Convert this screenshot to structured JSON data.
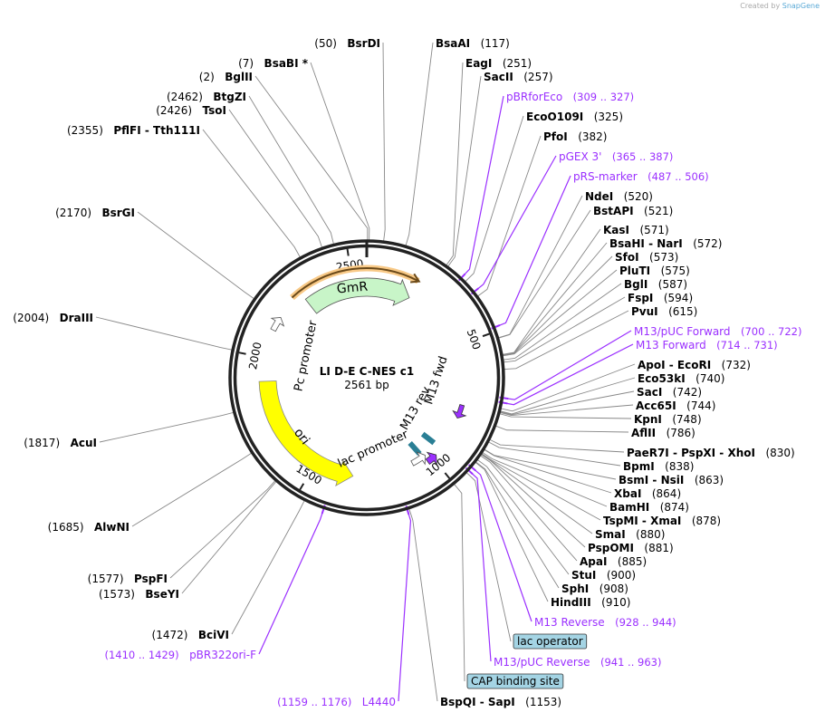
{
  "credit": {
    "prefix": "Created by",
    "brand": "SnapGene"
  },
  "plasmid": {
    "name": "LI D-E C-NES c1",
    "length": "2561 bp",
    "total_bp": 2561
  },
  "ticks": [
    "500",
    "1000",
    "1500",
    "2000",
    "2500"
  ],
  "features": {
    "gmr": "GmR",
    "pc_promoter": "Pc promoter",
    "ori": "ori",
    "m13_fwd": "M13 fwd",
    "m13_rev": "M13 rev",
    "lac_promoter": "lac promoter"
  },
  "colors": {
    "purple": "#9b30ff",
    "gmr": "#c8f5c8",
    "ori": "#ffff00",
    "orange": "#f5a623",
    "teal": "#2a7f95",
    "box": "#a4d4e4"
  },
  "labels": [
    {
      "name": "BsrDI",
      "loc": "(50)",
      "kind": "site"
    },
    {
      "name": "BsaAI",
      "loc": "(117)",
      "kind": "site"
    },
    {
      "name": "EagI",
      "loc": "(251)",
      "kind": "site"
    },
    {
      "name": "SacII",
      "loc": "(257)",
      "kind": "site"
    },
    {
      "name": "pBRforEco",
      "loc": "(309 .. 327)",
      "kind": "primer"
    },
    {
      "name": "EcoO109I",
      "loc": "(325)",
      "kind": "site"
    },
    {
      "name": "PfoI",
      "loc": "(382)",
      "kind": "site"
    },
    {
      "name": "pGEX 3'",
      "loc": "(365 .. 387)",
      "kind": "primer"
    },
    {
      "name": "pRS-marker",
      "loc": "(487 .. 506)",
      "kind": "primer"
    },
    {
      "name": "NdeI",
      "loc": "(520)",
      "kind": "site"
    },
    {
      "name": "BstAPI",
      "loc": "(521)",
      "kind": "site"
    },
    {
      "name": "KasI",
      "loc": "(571)",
      "kind": "site"
    },
    {
      "name": "BsaHI - NarI",
      "loc": "(572)",
      "kind": "site"
    },
    {
      "name": "SfoI",
      "loc": "(573)",
      "kind": "site"
    },
    {
      "name": "PluTI",
      "loc": "(575)",
      "kind": "site"
    },
    {
      "name": "BglI",
      "loc": "(587)",
      "kind": "site"
    },
    {
      "name": "FspI",
      "loc": "(594)",
      "kind": "site"
    },
    {
      "name": "PvuI",
      "loc": "(615)",
      "kind": "site"
    },
    {
      "name": "M13/pUC Forward",
      "loc": "(700 .. 722)",
      "kind": "primer"
    },
    {
      "name": "M13 Forward",
      "loc": "(714 .. 731)",
      "kind": "primer"
    },
    {
      "name": "ApoI - EcoRI",
      "loc": "(732)",
      "kind": "site"
    },
    {
      "name": "Eco53kI",
      "loc": "(740)",
      "kind": "site"
    },
    {
      "name": "SacI",
      "loc": "(742)",
      "kind": "site"
    },
    {
      "name": "Acc65I",
      "loc": "(744)",
      "kind": "site"
    },
    {
      "name": "KpnI",
      "loc": "(748)",
      "kind": "site"
    },
    {
      "name": "AflII",
      "loc": "(786)",
      "kind": "site"
    },
    {
      "name": "PaeR7I - PspXI - XhoI",
      "loc": "(830)",
      "kind": "site"
    },
    {
      "name": "BpmI",
      "loc": "(838)",
      "kind": "site"
    },
    {
      "name": "BsmI - NsiI",
      "loc": "(863)",
      "kind": "site"
    },
    {
      "name": "XbaI",
      "loc": "(864)",
      "kind": "site"
    },
    {
      "name": "BamHI",
      "loc": "(874)",
      "kind": "site"
    },
    {
      "name": "TspMI - XmaI",
      "loc": "(878)",
      "kind": "site"
    },
    {
      "name": "SmaI",
      "loc": "(880)",
      "kind": "site"
    },
    {
      "name": "PspOMI",
      "loc": "(881)",
      "kind": "site"
    },
    {
      "name": "ApaI",
      "loc": "(885)",
      "kind": "site"
    },
    {
      "name": "StuI",
      "loc": "(900)",
      "kind": "site"
    },
    {
      "name": "SphI",
      "loc": "(908)",
      "kind": "site"
    },
    {
      "name": "HindIII",
      "loc": "(910)",
      "kind": "site"
    },
    {
      "name": "M13 Reverse",
      "loc": "(928 .. 944)",
      "kind": "primer"
    },
    {
      "name": "lac operator",
      "loc": "",
      "kind": "box",
      "bp": 950
    },
    {
      "name": "M13/pUC Reverse",
      "loc": "(941 .. 963)",
      "kind": "primer"
    },
    {
      "name": "CAP binding site",
      "loc": "",
      "kind": "box",
      "bp": 1000
    },
    {
      "name": "BspQI - SapI",
      "loc": "(1153)",
      "kind": "site"
    },
    {
      "name": "L4440",
      "loc": "(1159 .. 1176)",
      "kind": "primer"
    },
    {
      "name": "pBR322ori-F",
      "loc": "(1410 .. 1429)",
      "kind": "primer"
    },
    {
      "name": "BciVI",
      "loc": "(1472)",
      "kind": "site"
    },
    {
      "name": "BseYI",
      "loc": "(1573)",
      "kind": "site"
    },
    {
      "name": "PspFI",
      "loc": "(1577)",
      "kind": "site"
    },
    {
      "name": "AlwNI",
      "loc": "(1685)",
      "kind": "site"
    },
    {
      "name": "AcuI",
      "loc": "(1817)",
      "kind": "site"
    },
    {
      "name": "DraIII",
      "loc": "(2004)",
      "kind": "site"
    },
    {
      "name": "BsrGI",
      "loc": "(2170)",
      "kind": "site"
    },
    {
      "name": "PflFI - Tth111I",
      "loc": "(2355)",
      "kind": "site"
    },
    {
      "name": "TsoI",
      "loc": "(2426)",
      "kind": "site"
    },
    {
      "name": "BtgZI",
      "loc": "(2462)",
      "kind": "site"
    },
    {
      "name": "BglII",
      "loc": "(2)",
      "kind": "site"
    },
    {
      "name": "BsaBI *",
      "loc": "(7)",
      "kind": "site"
    }
  ]
}
